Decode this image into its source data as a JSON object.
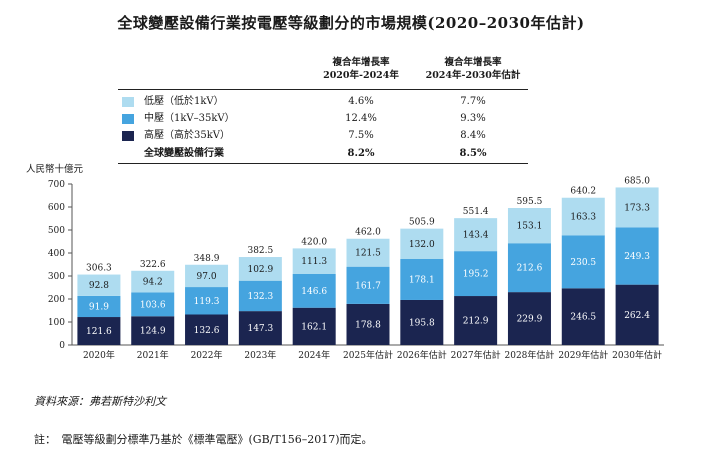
{
  "title": "全球變壓設備行業按電壓等級劃分的市場規模(2020–2030年估計)",
  "cagr_headers": {
    "col1": [
      "複合年增長率",
      "2020年-2024年"
    ],
    "col2": [
      "複合年增長率",
      "2024年-2030年估計"
    ]
  },
  "legend": [
    {
      "label": "低壓（低於1kV）",
      "color": "#aedcf0",
      "cagr1": "4.6%",
      "cagr2": "7.7%"
    },
    {
      "label": "中壓（1kV–35kV）",
      "color": "#45a4df",
      "cagr1": "12.4%",
      "cagr2": "9.3%"
    },
    {
      "label": "高壓（高於35kV）",
      "color": "#1b2550",
      "cagr1": "7.5%",
      "cagr2": "8.4%"
    }
  ],
  "total_row": {
    "label": "全球變壓設備行業",
    "cagr1": "8.2%",
    "cagr2": "8.5%"
  },
  "unit_label": "人民幣十億元",
  "chart_data": {
    "type": "bar",
    "stacked": true,
    "categories": [
      "2020年",
      "2021年",
      "2022年",
      "2023年",
      "2024年",
      "2025年估計",
      "2026年估計",
      "2027年估計",
      "2028年估計",
      "2029年估計",
      "2030年估計"
    ],
    "series": [
      {
        "name": "高壓（高於35kV）",
        "color": "#1b2550",
        "label_color": "#ffffff",
        "values": [
          121.6,
          124.9,
          132.6,
          147.3,
          162.1,
          178.8,
          195.8,
          212.9,
          229.9,
          246.5,
          262.4
        ]
      },
      {
        "name": "中壓（1kV–35kV）",
        "color": "#45a4df",
        "label_color": "#ffffff",
        "values": [
          91.9,
          103.6,
          119.3,
          132.3,
          146.6,
          161.7,
          178.1,
          195.2,
          212.6,
          230.5,
          249.3
        ]
      },
      {
        "name": "低壓（低於1kV）",
        "color": "#aedcf0",
        "label_color": "#1a1a1a",
        "values": [
          92.8,
          94.2,
          97.0,
          102.9,
          111.3,
          121.5,
          132.0,
          143.4,
          153.1,
          163.3,
          173.3
        ]
      }
    ],
    "totals": [
      "306.3",
      "322.6",
      "348.9",
      "382.5",
      "420.0",
      "462.0",
      "505.9",
      "551.4",
      "595.5",
      "640.2",
      "685.0"
    ],
    "ylim": [
      0,
      700
    ],
    "yticks": [
      0,
      100,
      200,
      300,
      400,
      500,
      600,
      700
    ],
    "ylabel": "人民幣十億元",
    "xlabel": "",
    "grid": false
  },
  "source": "資料來源：弗若斯特沙利文",
  "note": "註：　電壓等級劃分標準乃基於《標準電壓》(GB/T156–2017)而定。"
}
